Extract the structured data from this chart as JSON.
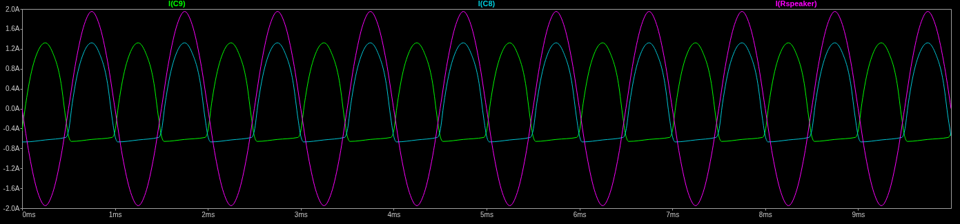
{
  "chart_data": {
    "type": "line",
    "legend": "top",
    "xlim": [
      0,
      10
    ],
    "xticks": [
      {
        "value": 0,
        "label": "0ms"
      },
      {
        "value": 1,
        "label": "1ms"
      },
      {
        "value": 2,
        "label": "2ms"
      },
      {
        "value": 3,
        "label": "3ms"
      },
      {
        "value": 4,
        "label": "4ms"
      },
      {
        "value": 5,
        "label": "5ms"
      },
      {
        "value": 6,
        "label": "6ms"
      },
      {
        "value": 7,
        "label": "7ms"
      },
      {
        "value": 8,
        "label": "8ms"
      },
      {
        "value": 9,
        "label": "9ms"
      }
    ],
    "ylim": [
      -2,
      2
    ],
    "yticks": [
      {
        "value": -2,
        "label": "-2.0A"
      },
      {
        "value": -1.6,
        "label": "-1.6A"
      },
      {
        "value": -1.2,
        "label": "-1.2A"
      },
      {
        "value": -0.8,
        "label": "-0.8A"
      },
      {
        "value": -0.4,
        "label": "-0.4A"
      },
      {
        "value": 0,
        "label": "0.0A"
      },
      {
        "value": 0.4,
        "label": "0.4A"
      },
      {
        "value": 0.8,
        "label": "0.8A"
      },
      {
        "value": 1.2,
        "label": "1.2A"
      },
      {
        "value": 1.6,
        "label": "1.6A"
      },
      {
        "value": 2,
        "label": "2.0A"
      }
    ],
    "series": [
      {
        "name": "I(C9)",
        "color": "#00ff00",
        "x": [
          0,
          0.04,
          0.08,
          0.17,
          0.25,
          0.33,
          0.42,
          0.47,
          0.5,
          0.53,
          0.75,
          0.97,
          1,
          1.04,
          1.08,
          1.17,
          1.25,
          1.33,
          1.42,
          1.47,
          1.5,
          1.53,
          1.75,
          1.97,
          2,
          2.04,
          2.08,
          2.17,
          2.25,
          2.33,
          2.42,
          2.47,
          2.5,
          2.53,
          2.75,
          2.97,
          3,
          3.04,
          3.08,
          3.17,
          3.25,
          3.33,
          3.42,
          3.47,
          3.5,
          3.53,
          3.75,
          3.97,
          4,
          4.04,
          4.08,
          4.17,
          4.25,
          4.33,
          4.42,
          4.47,
          4.5,
          4.53,
          4.75,
          4.97,
          5,
          5.04,
          5.08,
          5.17,
          5.25,
          5.33,
          5.42,
          5.47,
          5.5,
          5.53,
          5.75,
          5.97,
          6,
          6.04,
          6.08,
          6.17,
          6.25,
          6.33,
          6.42,
          6.47,
          6.5,
          6.53,
          6.75,
          6.97,
          7,
          7.04,
          7.08,
          7.17,
          7.25,
          7.33,
          7.42,
          7.47,
          7.5,
          7.53,
          7.75,
          7.97,
          8,
          8.04,
          8.08,
          8.17,
          8.25,
          8.33,
          8.42,
          8.47,
          8.5,
          8.53,
          8.75,
          8.97,
          9,
          9.04,
          9.08,
          9.17,
          9.25,
          9.33,
          9.42,
          9.47,
          9.5,
          9.53,
          9.75,
          9.97,
          10
        ],
        "values": [
          -0.45,
          0.1,
          0.55,
          1.15,
          1.32,
          1.12,
          0.5,
          -0.2,
          -0.55,
          -0.66,
          -0.62,
          -0.58,
          -0.45,
          0.1,
          0.55,
          1.15,
          1.32,
          1.12,
          0.5,
          -0.2,
          -0.55,
          -0.66,
          -0.62,
          -0.58,
          -0.45,
          0.1,
          0.55,
          1.15,
          1.32,
          1.12,
          0.5,
          -0.2,
          -0.55,
          -0.66,
          -0.62,
          -0.58,
          -0.45,
          0.1,
          0.55,
          1.15,
          1.32,
          1.12,
          0.5,
          -0.2,
          -0.55,
          -0.66,
          -0.62,
          -0.58,
          -0.45,
          0.1,
          0.55,
          1.15,
          1.32,
          1.12,
          0.5,
          -0.2,
          -0.55,
          -0.66,
          -0.62,
          -0.58,
          -0.45,
          0.1,
          0.55,
          1.15,
          1.32,
          1.12,
          0.5,
          -0.2,
          -0.55,
          -0.66,
          -0.62,
          -0.58,
          -0.45,
          0.1,
          0.55,
          1.15,
          1.32,
          1.12,
          0.5,
          -0.2,
          -0.55,
          -0.66,
          -0.62,
          -0.58,
          -0.45,
          0.1,
          0.55,
          1.15,
          1.32,
          1.12,
          0.5,
          -0.2,
          -0.55,
          -0.66,
          -0.62,
          -0.58,
          -0.45,
          0.1,
          0.55,
          1.15,
          1.32,
          1.12,
          0.5,
          -0.2,
          -0.55,
          -0.66,
          -0.62,
          -0.58,
          -0.45,
          0.1,
          0.55,
          1.15,
          1.32,
          1.12,
          0.5,
          -0.2,
          -0.55,
          -0.66,
          -0.62,
          -0.58,
          -0.5
        ]
      },
      {
        "name": "I(C8)",
        "color": "#00c8d8",
        "x": [
          0,
          0.03,
          0.25,
          0.47,
          0.5,
          0.54,
          0.58,
          0.67,
          0.75,
          0.83,
          0.92,
          0.97,
          1,
          1.03,
          1.25,
          1.47,
          1.5,
          1.54,
          1.58,
          1.67,
          1.75,
          1.83,
          1.92,
          1.97,
          2,
          2.03,
          2.25,
          2.47,
          2.5,
          2.54,
          2.58,
          2.67,
          2.75,
          2.83,
          2.92,
          2.97,
          3,
          3.03,
          3.25,
          3.47,
          3.5,
          3.54,
          3.58,
          3.67,
          3.75,
          3.83,
          3.92,
          3.97,
          4,
          4.03,
          4.25,
          4.47,
          4.5,
          4.54,
          4.58,
          4.67,
          4.75,
          4.83,
          4.92,
          4.97,
          5,
          5.03,
          5.25,
          5.47,
          5.5,
          5.54,
          5.58,
          5.67,
          5.75,
          5.83,
          5.92,
          5.97,
          6,
          6.03,
          6.25,
          6.47,
          6.5,
          6.54,
          6.58,
          6.67,
          6.75,
          6.83,
          6.92,
          6.97,
          7,
          7.03,
          7.25,
          7.47,
          7.5,
          7.54,
          7.58,
          7.67,
          7.75,
          7.83,
          7.92,
          7.97,
          8,
          8.03,
          8.25,
          8.47,
          8.5,
          8.54,
          8.58,
          8.67,
          8.75,
          8.83,
          8.92,
          8.97,
          9,
          9.03,
          9.25,
          9.47,
          9.5,
          9.54,
          9.58,
          9.67,
          9.75,
          9.83,
          9.92,
          9.97,
          10
        ],
        "values": [
          -0.67,
          -0.67,
          -0.63,
          -0.58,
          -0.45,
          0.1,
          0.55,
          1.15,
          1.32,
          1.12,
          0.5,
          -0.2,
          -0.55,
          -0.67,
          -0.63,
          -0.58,
          -0.45,
          0.1,
          0.55,
          1.15,
          1.32,
          1.12,
          0.5,
          -0.2,
          -0.55,
          -0.67,
          -0.63,
          -0.58,
          -0.45,
          0.1,
          0.55,
          1.15,
          1.32,
          1.12,
          0.5,
          -0.2,
          -0.55,
          -0.67,
          -0.63,
          -0.58,
          -0.45,
          0.1,
          0.55,
          1.15,
          1.32,
          1.12,
          0.5,
          -0.2,
          -0.55,
          -0.67,
          -0.63,
          -0.58,
          -0.45,
          0.1,
          0.55,
          1.15,
          1.32,
          1.12,
          0.5,
          -0.2,
          -0.55,
          -0.67,
          -0.63,
          -0.58,
          -0.45,
          0.1,
          0.55,
          1.15,
          1.32,
          1.12,
          0.5,
          -0.2,
          -0.55,
          -0.67,
          -0.63,
          -0.58,
          -0.45,
          0.1,
          0.55,
          1.15,
          1.32,
          1.12,
          0.5,
          -0.2,
          -0.55,
          -0.67,
          -0.63,
          -0.58,
          -0.45,
          0.1,
          0.55,
          1.15,
          1.32,
          1.12,
          0.5,
          -0.2,
          -0.55,
          -0.67,
          -0.63,
          -0.58,
          -0.45,
          0.1,
          0.55,
          1.15,
          1.32,
          1.12,
          0.5,
          -0.2,
          -0.55,
          -0.67,
          -0.63,
          -0.58,
          -0.45,
          0.1,
          0.55,
          1.15,
          1.32,
          1.12,
          0.5,
          -0.2,
          -0.55
        ]
      },
      {
        "name": "I(Rspeaker)",
        "color": "#ff00ff",
        "x": [
          0,
          0.08,
          0.17,
          0.25,
          0.33,
          0.42,
          0.5,
          0.58,
          0.67,
          0.75,
          0.83,
          0.92,
          1,
          1.08,
          1.17,
          1.25,
          1.33,
          1.42,
          1.5,
          1.58,
          1.67,
          1.75,
          1.83,
          1.92,
          2,
          2.08,
          2.17,
          2.25,
          2.33,
          2.42,
          2.5,
          2.58,
          2.67,
          2.75,
          2.83,
          2.92,
          3,
          3.08,
          3.17,
          3.25,
          3.33,
          3.42,
          3.5,
          3.58,
          3.67,
          3.75,
          3.83,
          3.92,
          4,
          4.08,
          4.17,
          4.25,
          4.33,
          4.42,
          4.5,
          4.58,
          4.67,
          4.75,
          4.83,
          4.92,
          5,
          5.08,
          5.17,
          5.25,
          5.33,
          5.42,
          5.5,
          5.58,
          5.67,
          5.75,
          5.83,
          5.92,
          6,
          6.08,
          6.17,
          6.25,
          6.33,
          6.42,
          6.5,
          6.58,
          6.67,
          6.75,
          6.83,
          6.92,
          7,
          7.08,
          7.17,
          7.25,
          7.33,
          7.42,
          7.5,
          7.58,
          7.67,
          7.75,
          7.83,
          7.92,
          8,
          8.08,
          8.17,
          8.25,
          8.33,
          8.42,
          8.5,
          8.58,
          8.67,
          8.75,
          8.83,
          8.92,
          9,
          9.08,
          9.17,
          9.25,
          9.33,
          9.42,
          9.5,
          9.58,
          9.67,
          9.75,
          9.83,
          9.92,
          10
        ],
        "values": [
          0,
          -0.95,
          -1.69,
          -1.95,
          -1.69,
          -0.95,
          0,
          0.95,
          1.69,
          1.95,
          1.69,
          0.95,
          0,
          -0.95,
          -1.69,
          -1.95,
          -1.69,
          -0.95,
          0,
          0.95,
          1.69,
          1.95,
          1.69,
          0.95,
          0,
          -0.95,
          -1.69,
          -1.95,
          -1.69,
          -0.95,
          0,
          0.95,
          1.69,
          1.95,
          1.69,
          0.95,
          0,
          -0.95,
          -1.69,
          -1.95,
          -1.69,
          -0.95,
          0,
          0.95,
          1.69,
          1.95,
          1.69,
          0.95,
          0,
          -0.95,
          -1.69,
          -1.95,
          -1.69,
          -0.95,
          0,
          0.95,
          1.69,
          1.95,
          1.69,
          0.95,
          0,
          -0.95,
          -1.69,
          -1.95,
          -1.69,
          -0.95,
          0,
          0.95,
          1.69,
          1.95,
          1.69,
          0.95,
          0,
          -0.95,
          -1.69,
          -1.95,
          -1.69,
          -0.95,
          0,
          0.95,
          1.69,
          1.95,
          1.69,
          0.95,
          0,
          -0.95,
          -1.69,
          -1.95,
          -1.69,
          -0.95,
          0,
          0.95,
          1.69,
          1.95,
          1.69,
          0.95,
          0,
          -0.95,
          -1.69,
          -1.95,
          -1.69,
          -0.95,
          0,
          0.95,
          1.69,
          1.95,
          1.69,
          0.95,
          0,
          -0.95,
          -1.69,
          -1.95,
          -1.69,
          -0.95,
          0,
          0.95,
          1.69,
          1.95,
          1.69,
          0.95,
          0
        ]
      }
    ]
  }
}
